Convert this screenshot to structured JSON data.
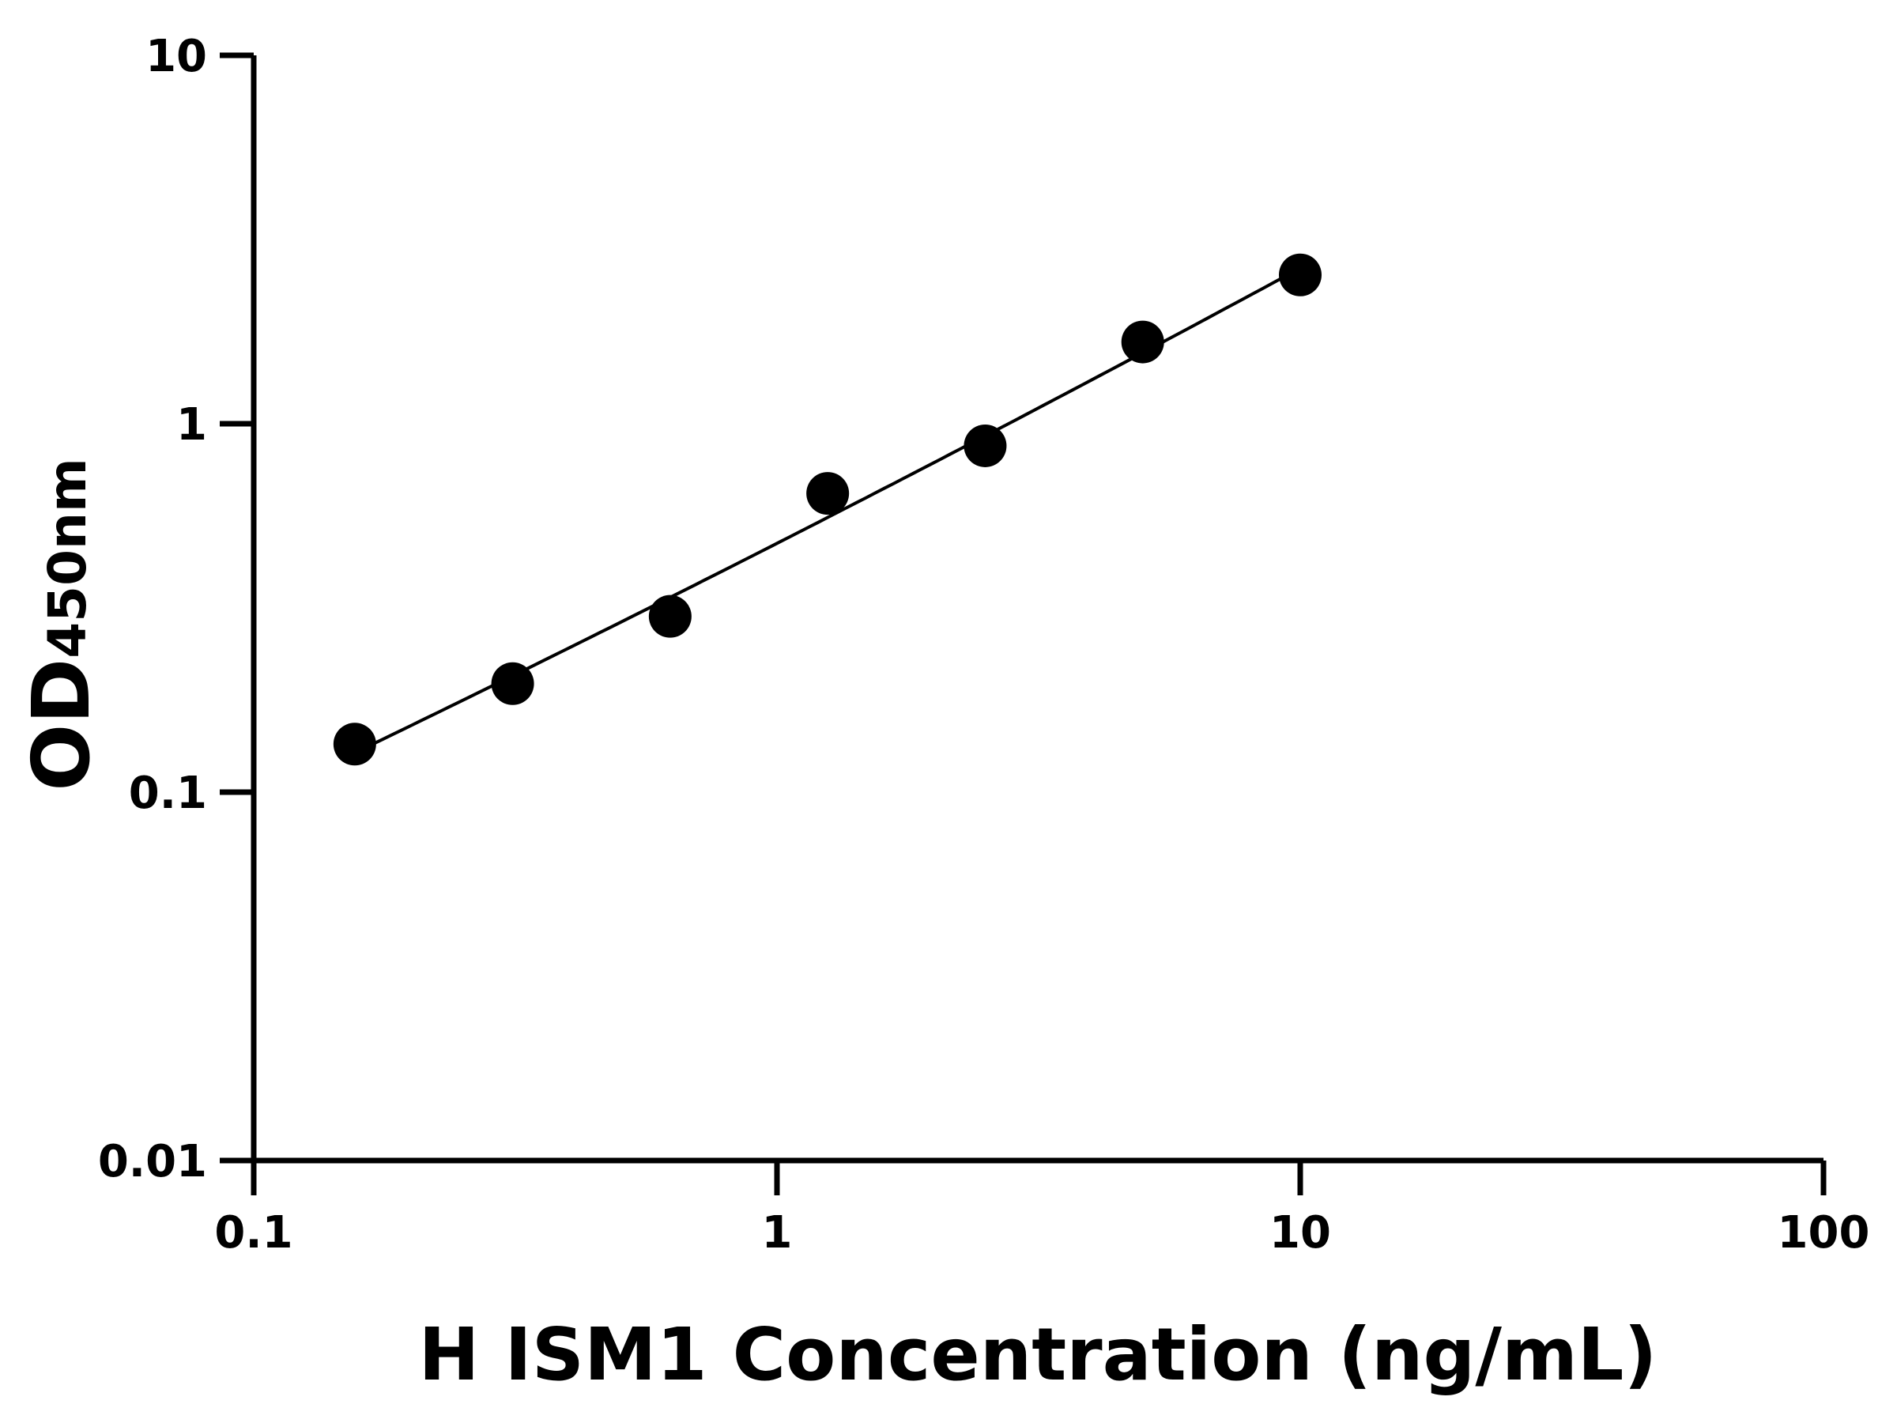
{
  "chart_data": {
    "type": "scatter",
    "x_label": "H ISM1 Concentration (ng/mL)",
    "y_label": "OD",
    "y_label_subscript": "450nm",
    "x": [
      0.156,
      0.3125,
      0.625,
      1.25,
      2.5,
      5,
      10
    ],
    "values": [
      0.135,
      0.197,
      0.3,
      0.647,
      0.871,
      1.667,
      2.535
    ],
    "color": "#000000",
    "xscale": "log",
    "yscale": "log",
    "xlim": [
      0.1,
      100
    ],
    "ylim": [
      0.01,
      10
    ],
    "xticks": [
      0.1,
      1,
      10,
      100
    ],
    "yticks": [
      0.01,
      0.1,
      1,
      10
    ],
    "fit_curve": true
  }
}
